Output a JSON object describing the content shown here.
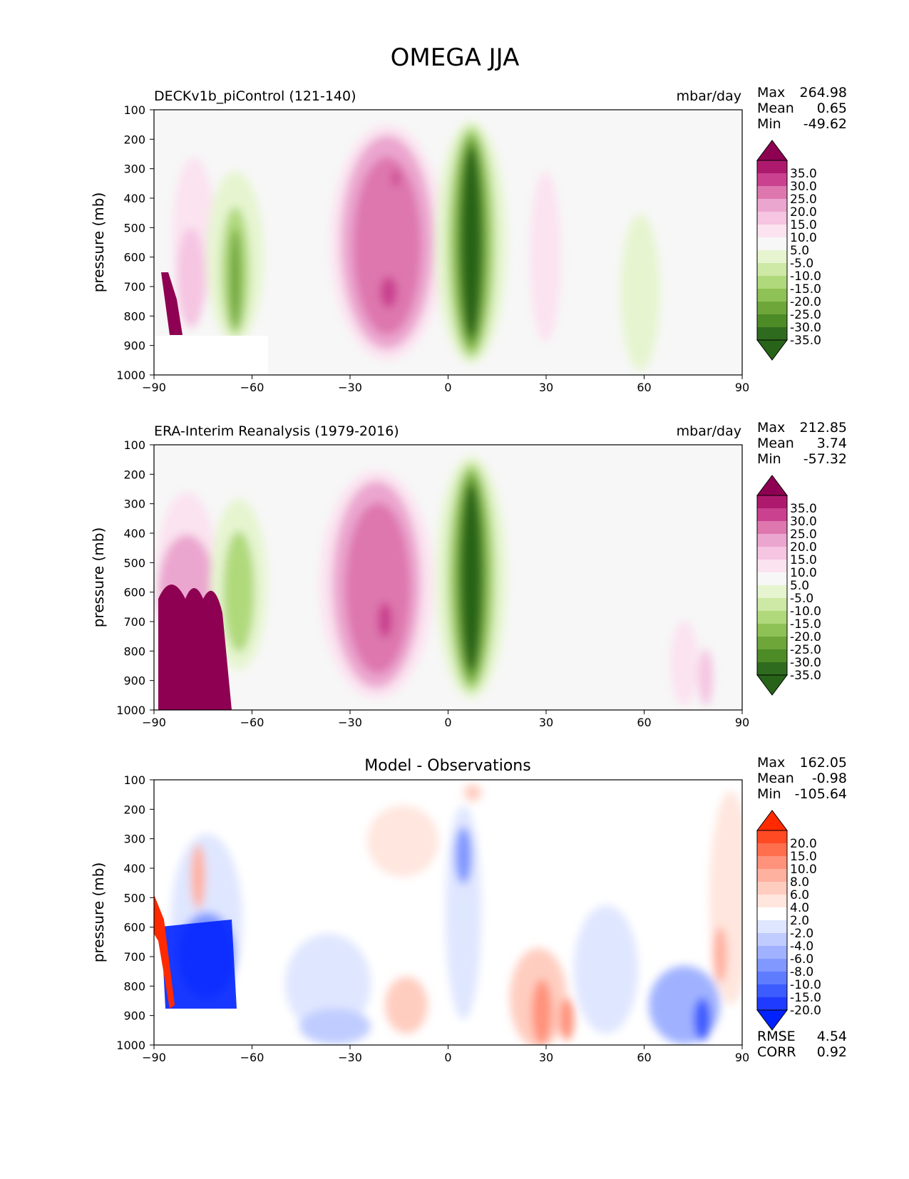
{
  "figure_title": "OMEGA JJA",
  "chart_data": [
    {
      "type": "heatmap",
      "title": "DECKv1b_piControl (121-140)",
      "units": "mbar/day",
      "ylabel": "pressure (mb)",
      "xlim": [
        -90,
        90
      ],
      "ylim": [
        1000,
        100
      ],
      "x_ticks": [
        "−90",
        "−60",
        "−30",
        "0",
        "30",
        "60",
        "90"
      ],
      "y_ticks": [
        "100",
        "200",
        "300",
        "400",
        "500",
        "600",
        "700",
        "800",
        "900",
        "1000"
      ],
      "stats": [
        {
          "label": "Max",
          "value": "264.98"
        },
        {
          "label": "Mean",
          "value": "0.65"
        },
        {
          "label": "Min",
          "value": "-49.62"
        }
      ],
      "colorbar_labels": [
        "35.0",
        "30.0",
        "25.0",
        "20.0",
        "15.0",
        "10.0",
        "5.0",
        "-5.0",
        "-10.0",
        "-15.0",
        "-20.0",
        "-25.0",
        "-30.0",
        "-35.0"
      ],
      "colorbar_colors": [
        "#8e0152",
        "#ad1a6d",
        "#c9418f",
        "#de77ae",
        "#eba6cf",
        "#f5c5e2",
        "#fbe3f0",
        "#f7f7f7",
        "#e6f5d0",
        "#cde9a5",
        "#b0d97c",
        "#8fc256",
        "#6ea63a",
        "#4d8b27",
        "#2f6b1e",
        "#276419"
      ]
    },
    {
      "type": "heatmap",
      "title": "ERA-Interim Reanalysis (1979-2016)",
      "units": "mbar/day",
      "ylabel": "pressure (mb)",
      "xlim": [
        -90,
        90
      ],
      "ylim": [
        1000,
        100
      ],
      "x_ticks": [
        "−90",
        "−60",
        "−30",
        "0",
        "30",
        "60",
        "90"
      ],
      "y_ticks": [
        "100",
        "200",
        "300",
        "400",
        "500",
        "600",
        "700",
        "800",
        "900",
        "1000"
      ],
      "stats": [
        {
          "label": "Max",
          "value": "212.85"
        },
        {
          "label": "Mean",
          "value": "3.74"
        },
        {
          "label": "Min",
          "value": "-57.32"
        }
      ],
      "colorbar_labels": [
        "35.0",
        "30.0",
        "25.0",
        "20.0",
        "15.0",
        "10.0",
        "5.0",
        "-5.0",
        "-10.0",
        "-15.0",
        "-20.0",
        "-25.0",
        "-30.0",
        "-35.0"
      ],
      "colorbar_colors": [
        "#8e0152",
        "#ad1a6d",
        "#c9418f",
        "#de77ae",
        "#eba6cf",
        "#f5c5e2",
        "#fbe3f0",
        "#f7f7f7",
        "#e6f5d0",
        "#cde9a5",
        "#b0d97c",
        "#8fc256",
        "#6ea63a",
        "#4d8b27",
        "#2f6b1e",
        "#276419"
      ]
    },
    {
      "type": "heatmap",
      "title": "Model - Observations",
      "ylabel": "pressure (mb)",
      "xlim": [
        -90,
        90
      ],
      "ylim": [
        1000,
        100
      ],
      "x_ticks": [
        "−90",
        "−60",
        "−30",
        "0",
        "30",
        "60",
        "90"
      ],
      "y_ticks": [
        "100",
        "200",
        "300",
        "400",
        "500",
        "600",
        "700",
        "800",
        "900",
        "1000"
      ],
      "stats": [
        {
          "label": "Max",
          "value": "162.05"
        },
        {
          "label": "Mean",
          "value": "-0.98"
        },
        {
          "label": "Min",
          "value": "-105.64"
        }
      ],
      "extra_stats": [
        {
          "label": "RMSE",
          "value": "4.54"
        },
        {
          "label": "CORR",
          "value": "0.92"
        }
      ],
      "colorbar_labels": [
        "20.0",
        "15.0",
        "10.0",
        "8.0",
        "6.0",
        "4.0",
        "2.0",
        "-2.0",
        "-4.0",
        "-6.0",
        "-8.0",
        "-10.0",
        "-15.0",
        "-20.0"
      ],
      "colorbar_colors": [
        "#ff2a00",
        "#ff4a24",
        "#ff6f4e",
        "#ff927a",
        "#ffb1a0",
        "#ffcdc0",
        "#ffe6de",
        "#ffffff",
        "#dfe6ff",
        "#c0ccff",
        "#a0b2ff",
        "#8098ff",
        "#5f7cff",
        "#3c5cff",
        "#1f3bff",
        "#0022ff"
      ]
    }
  ]
}
